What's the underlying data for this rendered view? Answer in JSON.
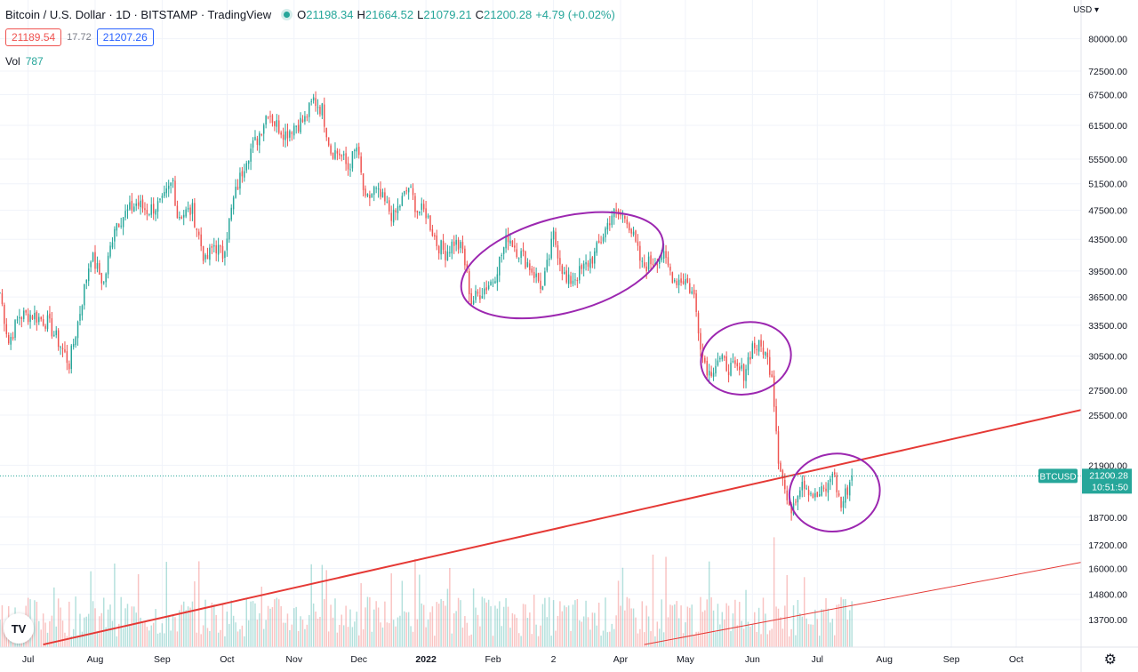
{
  "header": {
    "title": "Bitcoin / U.S. Dollar · 1D · BITSTAMP · TradingView",
    "ohlc": [
      {
        "k": "O",
        "v": "21198.34"
      },
      {
        "k": "H",
        "v": "21664.52"
      },
      {
        "k": "L",
        "v": "21079.21"
      },
      {
        "k": "C",
        "v": "21200.28"
      }
    ],
    "change": "+4.79 (+0.02%)"
  },
  "quote": {
    "bid": "21189.54",
    "spread": "17.72",
    "ask": "21207.26"
  },
  "volume": {
    "label": "Vol",
    "value": "787"
  },
  "currency_label": "USD",
  "gear_icon": "gear-icon",
  "logo_text": "TV",
  "symbol_label": "BTCUSD",
  "last_price_label": "21200.28",
  "countdown": "10:51:50",
  "colors": {
    "up": "#26a69a",
    "down": "#ef5350",
    "trendline": "#e53935",
    "ellipse": "#9c27b0"
  },
  "chart_data": {
    "type": "candlestick",
    "scale": "log",
    "ylim": [
      12600,
      90000
    ],
    "xlim": [
      "2021-06-18",
      "2022-10-31"
    ],
    "x_ticks": [
      {
        "d": "2021-07-01",
        "label": "Jul"
      },
      {
        "d": "2021-08-01",
        "label": "Aug"
      },
      {
        "d": "2021-09-01",
        "label": "Sep"
      },
      {
        "d": "2021-10-01",
        "label": "Oct"
      },
      {
        "d": "2021-11-01",
        "label": "Nov"
      },
      {
        "d": "2021-12-01",
        "label": "Dec"
      },
      {
        "d": "2022-01-01",
        "label": "2022"
      },
      {
        "d": "2022-02-01",
        "label": "Feb"
      },
      {
        "d": "2022-03-01",
        "label": "2"
      },
      {
        "d": "2022-04-01",
        "label": "Apr"
      },
      {
        "d": "2022-05-01",
        "label": "May"
      },
      {
        "d": "2022-06-01",
        "label": "Jun"
      },
      {
        "d": "2022-07-01",
        "label": "Jul"
      },
      {
        "d": "2022-08-01",
        "label": "Aug"
      },
      {
        "d": "2022-09-01",
        "label": "Sep"
      },
      {
        "d": "2022-10-01",
        "label": "Oct"
      }
    ],
    "y_ticks": [
      80000,
      72500,
      67500,
      61500,
      55500,
      51500,
      47500,
      43500,
      39500,
      36500,
      33500,
      30500,
      27500,
      25500,
      21900,
      18700,
      17200,
      16000,
      14800,
      13700
    ],
    "close_series": [
      [
        "2021-06-18",
        37000
      ],
      [
        "2021-06-22",
        31800
      ],
      [
        "2021-06-27",
        34500
      ],
      [
        "2021-07-03",
        34600
      ],
      [
        "2021-07-10",
        33800
      ],
      [
        "2021-07-16",
        31500
      ],
      [
        "2021-07-20",
        29800
      ],
      [
        "2021-07-24",
        33800
      ],
      [
        "2021-07-30",
        41500
      ],
      [
        "2021-08-05",
        38000
      ],
      [
        "2021-08-10",
        45500
      ],
      [
        "2021-08-15",
        47000
      ],
      [
        "2021-08-20",
        48500
      ],
      [
        "2021-08-25",
        47500
      ],
      [
        "2021-09-01",
        48500
      ],
      [
        "2021-09-06",
        52000
      ],
      [
        "2021-09-08",
        46800
      ],
      [
        "2021-09-15",
        47500
      ],
      [
        "2021-09-21",
        40500
      ],
      [
        "2021-09-25",
        42800
      ],
      [
        "2021-09-29",
        41500
      ],
      [
        "2021-10-04",
        49000
      ],
      [
        "2021-10-10",
        56000
      ],
      [
        "2021-10-15",
        59000
      ],
      [
        "2021-10-20",
        64500
      ],
      [
        "2021-10-23",
        62000
      ],
      [
        "2021-10-28",
        60000
      ],
      [
        "2021-11-01",
        61500
      ],
      [
        "2021-11-06",
        62500
      ],
      [
        "2021-11-10",
        66500
      ],
      [
        "2021-11-14",
        64500
      ],
      [
        "2021-11-18",
        57000
      ],
      [
        "2021-11-22",
        56500
      ],
      [
        "2021-11-26",
        54000
      ],
      [
        "2021-11-30",
        57500
      ],
      [
        "2021-12-04",
        48500
      ],
      [
        "2021-12-08",
        50500
      ],
      [
        "2021-12-12",
        49000
      ],
      [
        "2021-12-17",
        46500
      ],
      [
        "2021-12-24",
        51000
      ],
      [
        "2021-12-28",
        47500
      ],
      [
        "2022-01-01",
        47200
      ],
      [
        "2022-01-06",
        43000
      ],
      [
        "2022-01-10",
        41800
      ],
      [
        "2022-01-14",
        43200
      ],
      [
        "2022-01-18",
        42000
      ],
      [
        "2022-01-22",
        36000
      ],
      [
        "2022-01-26",
        37000
      ],
      [
        "2022-02-01",
        38500
      ],
      [
        "2022-02-08",
        44000
      ],
      [
        "2022-02-12",
        42200
      ],
      [
        "2022-02-17",
        40500
      ],
      [
        "2022-02-24",
        37500
      ],
      [
        "2022-03-01",
        44000
      ],
      [
        "2022-03-07",
        38000
      ],
      [
        "2022-03-14",
        39500
      ],
      [
        "2022-03-20",
        41500
      ],
      [
        "2022-03-28",
        47000
      ],
      [
        "2022-04-04",
        46500
      ],
      [
        "2022-04-11",
        40000
      ],
      [
        "2022-04-20",
        41500
      ],
      [
        "2022-04-26",
        38500
      ],
      [
        "2022-05-01",
        38500
      ],
      [
        "2022-05-05",
        36500
      ],
      [
        "2022-05-09",
        30500
      ],
      [
        "2022-05-12",
        29000
      ],
      [
        "2022-05-16",
        30200
      ],
      [
        "2022-05-22",
        29400
      ],
      [
        "2022-05-28",
        29000
      ],
      [
        "2022-06-01",
        31500
      ],
      [
        "2022-06-06",
        31200
      ],
      [
        "2022-06-10",
        29000
      ],
      [
        "2022-06-13",
        22500
      ],
      [
        "2022-06-18",
        19000
      ],
      [
        "2022-06-24",
        21000
      ],
      [
        "2022-06-30",
        19800
      ],
      [
        "2022-07-06",
        20500
      ],
      [
        "2022-07-08",
        21600
      ],
      [
        "2022-07-12",
        19300
      ],
      [
        "2022-07-17",
        21200
      ]
    ],
    "annotations": [
      {
        "type": "trendline",
        "x1": "2021-07-08",
        "y1": 12700,
        "x2": "2022-10-31",
        "y2": 25900,
        "width": "thick"
      },
      {
        "type": "trendline",
        "x1": "2022-04-12",
        "y1": 12700,
        "x2": "2022-10-31",
        "y2": 16300,
        "width": "thin"
      },
      {
        "type": "ellipse",
        "center": [
          "2022-03-05",
          40200
        ],
        "rx_days": 48,
        "ry_factor": 1.155,
        "rotate_deg": -15
      },
      {
        "type": "ellipse",
        "center": [
          "2022-05-29",
          30300
        ],
        "rx_days": 21,
        "ry_factor": 1.115,
        "rotate_deg": -12
      },
      {
        "type": "ellipse",
        "center": [
          "2022-07-09",
          20150
        ],
        "rx_days": 21,
        "ry_factor": 1.125,
        "rotate_deg": -10
      }
    ],
    "last_price": 21200.28
  }
}
